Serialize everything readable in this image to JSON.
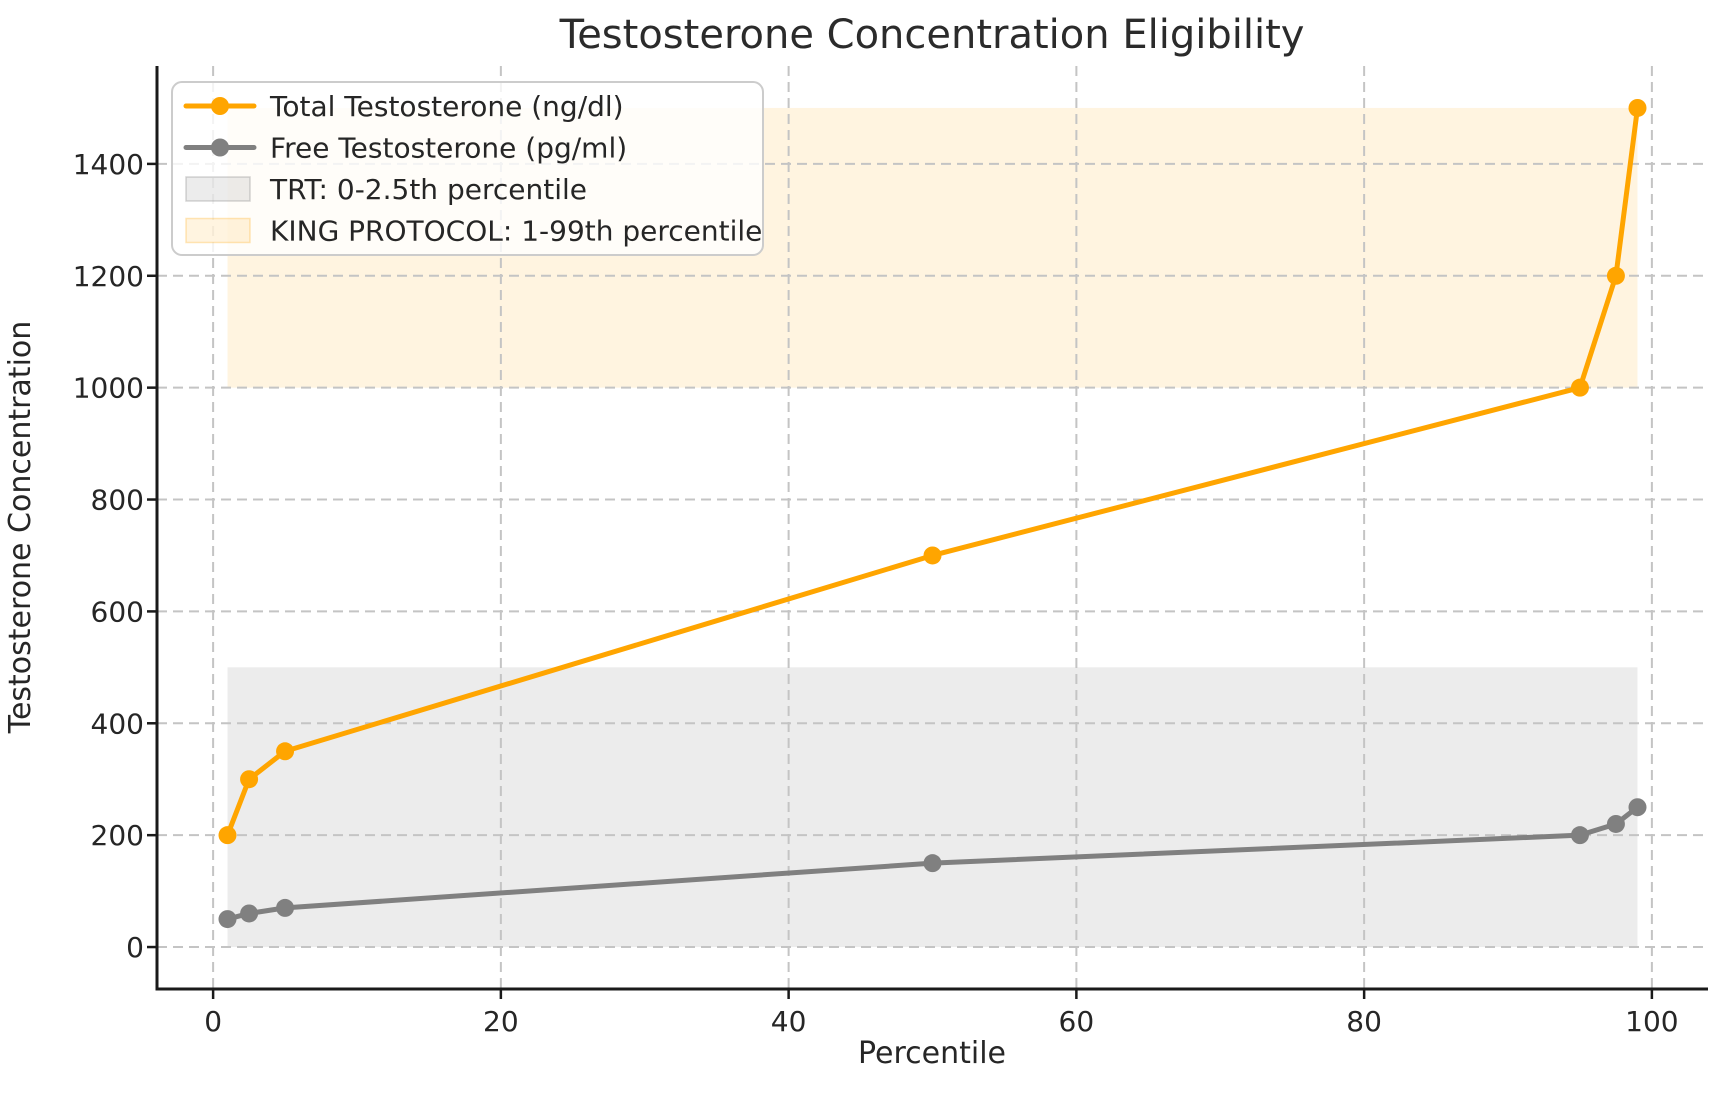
{
  "chart_data": {
    "type": "line",
    "title": "Testosterone Concentration Eligibility",
    "xlabel": "Percentile",
    "ylabel": "Testosterone Concentration",
    "xlim": [
      -3.9,
      103.9
    ],
    "ylim": [
      -75,
      1575
    ],
    "xticks": [
      0,
      20,
      40,
      60,
      80,
      100
    ],
    "yticks": [
      0,
      200,
      400,
      600,
      800,
      1000,
      1200,
      1400
    ],
    "grid": true,
    "grid_style": "dashed",
    "grid_color": "#c4c4c4",
    "legend_position": "upper-left",
    "x": [
      1,
      2.5,
      5,
      50,
      95,
      97.5,
      99
    ],
    "series": [
      {
        "name": "Total Testosterone (ng/dl)",
        "slug": "total-testosterone",
        "color": "#FFA500",
        "marker": "circle",
        "values": [
          200,
          300,
          350,
          700,
          1000,
          1200,
          1500
        ]
      },
      {
        "name": "Free Testosterone (pg/ml)",
        "slug": "free-testosterone",
        "color": "#808080",
        "marker": "circle",
        "values": [
          50,
          60,
          70,
          150,
          200,
          220,
          250
        ]
      }
    ],
    "bands": [
      {
        "name": "TRT: 0-2.5th percentile",
        "slug": "trt-band",
        "color": "#808080",
        "alpha": 0.15,
        "x_range": [
          1,
          99
        ],
        "y_range": [
          0,
          500
        ]
      },
      {
        "name": "KING PROTOCOL: 1-99th percentile",
        "slug": "king-protocol-band",
        "color": "#FFA500",
        "alpha": 0.12,
        "x_range": [
          1,
          99
        ],
        "y_range": [
          1000,
          1500
        ]
      }
    ],
    "legend": {
      "entries": [
        {
          "type": "line",
          "slug": "total-testosterone",
          "label": "Total Testosterone (ng/dl)",
          "color": "#FFA500",
          "alpha": 1
        },
        {
          "type": "line",
          "slug": "free-testosterone",
          "label": "Free Testosterone (pg/ml)",
          "color": "#808080",
          "alpha": 1
        },
        {
          "type": "patch",
          "slug": "trt-band",
          "label": "TRT: 0-2.5th percentile",
          "color": "#808080",
          "alpha": 0.15
        },
        {
          "type": "patch",
          "slug": "king-protocol-band",
          "label": "KING PROTOCOL: 1-99th percentile",
          "color": "#FFA500",
          "alpha": 0.12
        }
      ]
    }
  },
  "colors": {
    "background": "#ffffff",
    "spine": "#1a1a1a",
    "text": "#262626",
    "grid": "#c4c4c4",
    "legend_border": "#cccccc",
    "legend_background": "rgba(255,255,255,0.8)",
    "accent_orange": "#FFA500",
    "accent_gray": "#808080"
  }
}
